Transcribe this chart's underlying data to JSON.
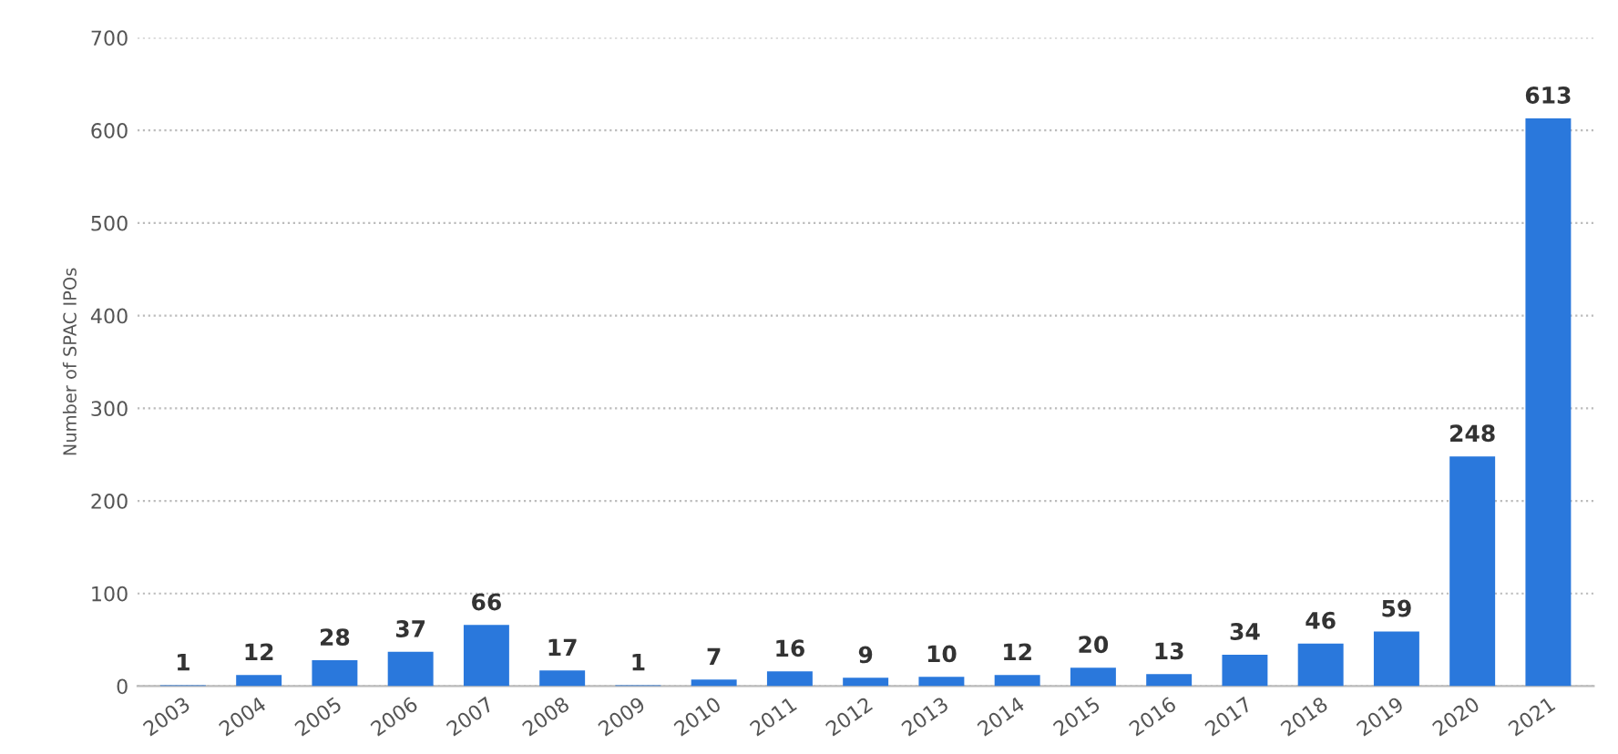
{
  "chart_data": {
    "type": "bar",
    "ylabel": "Number of SPAC IPOs",
    "categories": [
      "2003",
      "2004",
      "2005",
      "2006",
      "2007",
      "2008",
      "2009",
      "2010",
      "2011",
      "2012",
      "2013",
      "2014",
      "2015",
      "2016",
      "2017",
      "2018",
      "2019",
      "2020",
      "2021"
    ],
    "values": [
      1,
      12,
      28,
      37,
      66,
      17,
      1,
      7,
      16,
      9,
      10,
      12,
      20,
      13,
      34,
      46,
      59,
      248,
      613
    ],
    "color": "#2a78dc",
    "ylim": [
      0,
      700
    ],
    "yticks": [
      0,
      100,
      200,
      300,
      400,
      500,
      600,
      700
    ],
    "grid": "y",
    "data_labels": true
  }
}
